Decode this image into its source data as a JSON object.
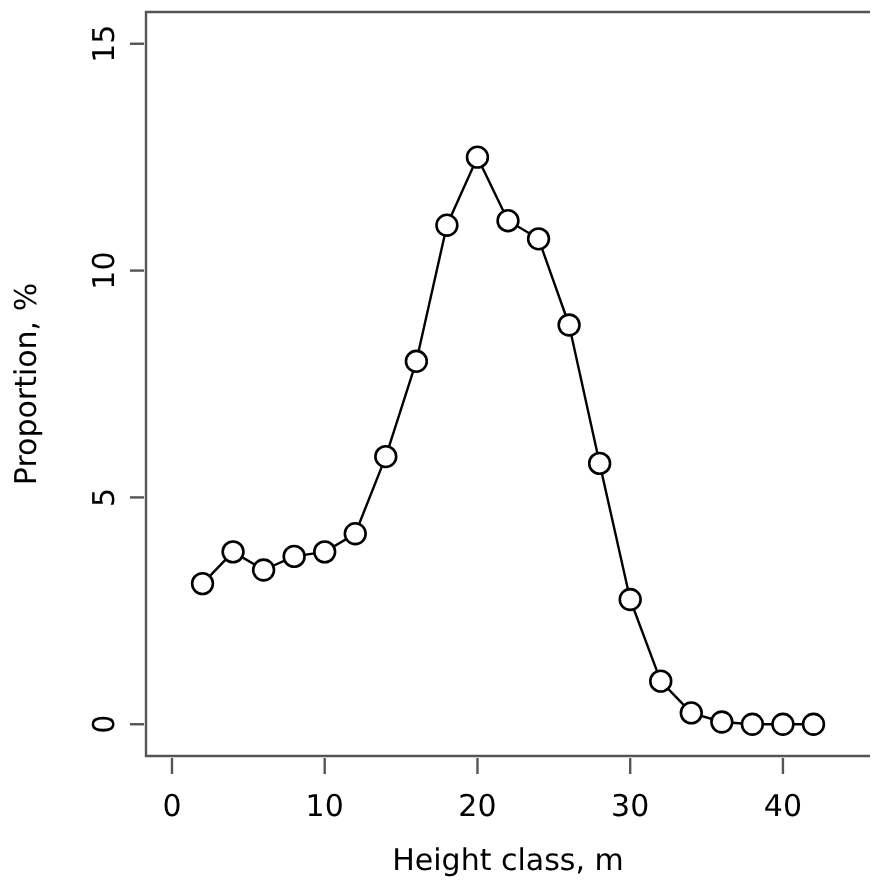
{
  "chart_data": {
    "type": "line",
    "xlabel": "Height class, m",
    "ylabel": "Proportion, %",
    "x": [
      2,
      4,
      6,
      8,
      10,
      12,
      14,
      16,
      18,
      20,
      22,
      24,
      26,
      28,
      30,
      32,
      34,
      36,
      38,
      40,
      42
    ],
    "series": [
      {
        "color": "#000000",
        "values": [
          3.1,
          3.8,
          3.4,
          3.7,
          3.8,
          4.2,
          5.9,
          8.0,
          11.0,
          12.5,
          11.1,
          10.7,
          8.8,
          5.75,
          2.75,
          0.95,
          0.25,
          0.05,
          0,
          0,
          0
        ]
      }
    ],
    "xlim": [
      -1.7,
      45.7
    ],
    "ylim": [
      -0.7,
      15.7
    ],
    "xticks": [
      0,
      10,
      20,
      30,
      40
    ],
    "yticks": [
      0,
      5,
      10,
      15
    ],
    "marker": "circle",
    "line_style": "solid"
  }
}
